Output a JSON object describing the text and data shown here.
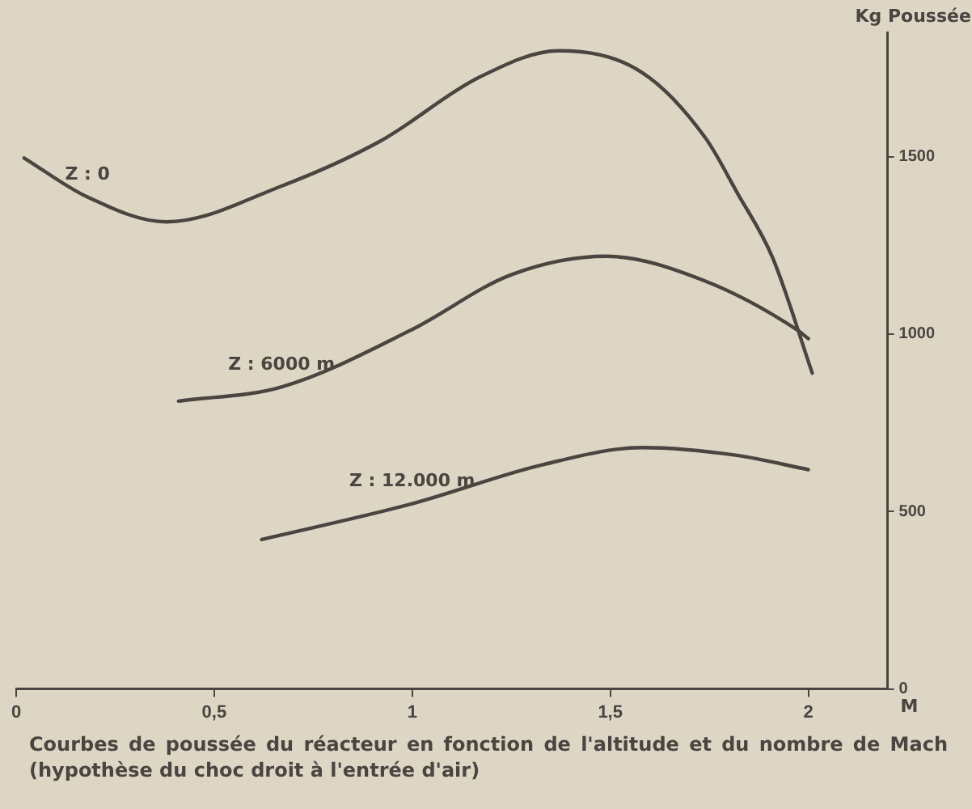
{
  "chart_data": {
    "type": "line",
    "ylabel": "Kg Poussée",
    "xlabel": "M",
    "xlim": [
      0,
      2.2
    ],
    "ylim": [
      0,
      1850
    ],
    "xticks": [
      0,
      {
        "value": 0.5,
        "label": "0,5"
      },
      1,
      {
        "value": 1.5,
        "label": "1,5"
      },
      2
    ],
    "yticks": [
      0,
      500,
      1000,
      1500
    ],
    "grid": false,
    "legend": false,
    "marker": "none",
    "line_style": "solid",
    "series": [
      {
        "name": "Z : 0",
        "color": "#4a4540",
        "x": [
          0.02,
          0.18,
          0.38,
          0.67,
          0.92,
          1.17,
          1.37,
          1.58,
          1.74,
          1.82,
          1.91,
          2.01
        ],
        "values": [
          1496,
          1386,
          1316,
          1417,
          1544,
          1724,
          1798,
          1737,
          1553,
          1399,
          1215,
          890
        ]
      },
      {
        "name": "Z : 6000 m",
        "color": "#4a4540",
        "x": [
          0.41,
          0.67,
          1.0,
          1.25,
          1.49,
          1.74,
          1.97,
          2.0
        ],
        "values": [
          811,
          851,
          1013,
          1167,
          1219,
          1149,
          1013,
          987
        ]
      },
      {
        "name": "Z : 12.000 m",
        "color": "#4a4540",
        "x": [
          0.62,
          1.0,
          1.33,
          1.58,
          1.82,
          2.0
        ],
        "values": [
          421,
          522,
          632,
          680,
          658,
          618
        ]
      }
    ],
    "annotations": [
      "Courbes de poussée du réacteur en fonction de l'altitude et du nombre de Mach (hypothèse du choc droit à l'entrée d'air)"
    ]
  }
}
